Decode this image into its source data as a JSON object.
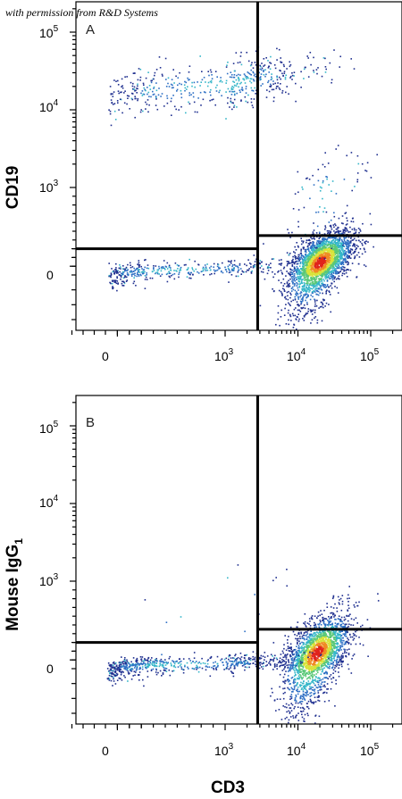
{
  "credit": "with permission from R&D Systems",
  "colors": {
    "scale": [
      "#1f2f8f",
      "#2d6fc4",
      "#35b6c9",
      "#5ac878",
      "#d8e33a",
      "#f08a23",
      "#e0231c"
    ],
    "gate": "#000000"
  },
  "chart_data": {
    "type": "scatter",
    "x_scale": "biexponential",
    "y_scale": "biexponential",
    "xlabel": "CD3",
    "x_ticks": [
      {
        "value": "0"
      },
      {
        "value": "10",
        "exp": "3"
      },
      {
        "value": "10",
        "exp": "4"
      },
      {
        "value": "10",
        "exp": "5"
      }
    ],
    "y_ticks": [
      {
        "value": "0"
      },
      {
        "value": "10",
        "exp": "3"
      },
      {
        "value": "10",
        "exp": "4"
      },
      {
        "value": "10",
        "exp": "5"
      }
    ],
    "panels": [
      {
        "letter": "A",
        "ylabel": "CD19",
        "ylabel_sub": "",
        "gate": {
          "x": 2800,
          "y_left": 300,
          "y_right": 450
        },
        "populations": [
          {
            "cx": 20000,
            "cy": 150,
            "sx": 0.22,
            "sy": 0.55,
            "n": 2600,
            "peak": true
          },
          {
            "cx": 500,
            "cy": 60,
            "sx": 0.55,
            "sy": 0.45,
            "n": 420,
            "peak": false
          },
          {
            "cx": 1200,
            "cy": 22000,
            "sx": 0.6,
            "sy": 0.18,
            "n": 520,
            "peak": false
          },
          {
            "cx": 25000,
            "cy": 1000,
            "sx": 0.3,
            "sy": 0.3,
            "n": 90,
            "peak": false
          }
        ]
      },
      {
        "letter": "B",
        "ylabel": "Mouse IgG",
        "ylabel_sub": "1",
        "gate": {
          "x": 2800,
          "y_left": 300,
          "y_right": 450
        },
        "populations": [
          {
            "cx": 18000,
            "cy": 180,
            "sx": 0.22,
            "sy": 0.55,
            "n": 2200,
            "peak": true
          },
          {
            "cx": 500,
            "cy": 50,
            "sx": 0.6,
            "sy": 0.5,
            "n": 650,
            "peak": false
          },
          {
            "cx": 900,
            "cy": 600,
            "sx": 0.5,
            "sy": 0.4,
            "n": 14,
            "peak": false
          }
        ]
      }
    ]
  }
}
